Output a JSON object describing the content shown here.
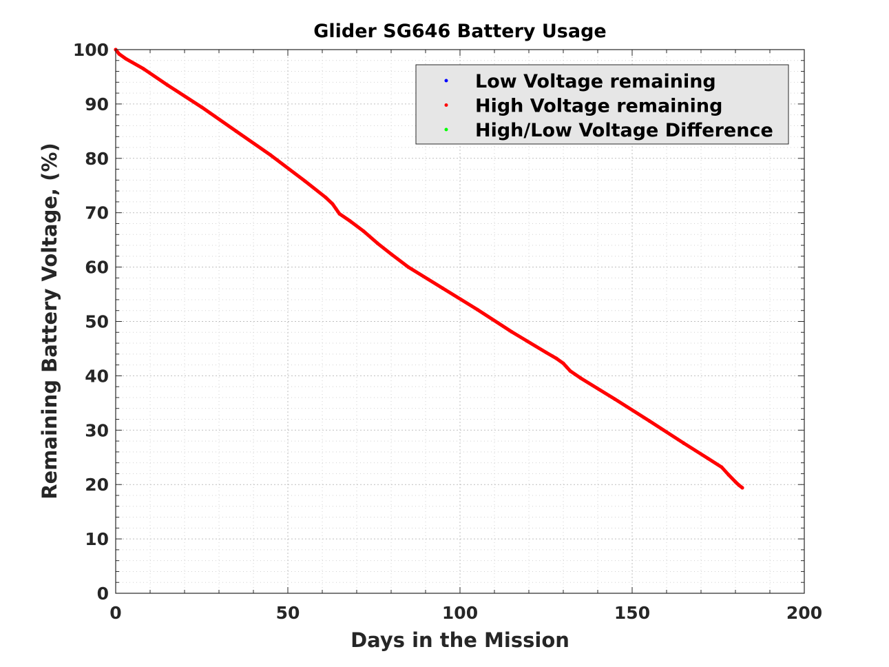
{
  "chart_data": {
    "type": "line",
    "title": "Glider SG646 Battery Usage",
    "xlabel": "Days in the Mission",
    "ylabel": "Remaining Battery Voltage, (%)",
    "xlim": [
      0,
      200
    ],
    "ylim": [
      0,
      100
    ],
    "xticks": [
      0,
      50,
      100,
      150,
      200
    ],
    "yticks": [
      0,
      10,
      20,
      30,
      40,
      50,
      60,
      70,
      80,
      90,
      100
    ],
    "grid": true,
    "minor_grid": true,
    "legend_position": "top-right",
    "series": [
      {
        "name": "Low Voltage remaining",
        "color": "#0000ff",
        "x": [],
        "y": []
      },
      {
        "name": "High Voltage remaining",
        "color": "#ff0000",
        "x": [
          0,
          1,
          3,
          8,
          15,
          25,
          35,
          45,
          55,
          61,
          63,
          64,
          65,
          68,
          72,
          76,
          80,
          85,
          95,
          105,
          115,
          125,
          128,
          130,
          131,
          132,
          135,
          145,
          155,
          165,
          172,
          176,
          178,
          180,
          181,
          182
        ],
        "y": [
          100,
          99.2,
          98.3,
          96.5,
          93.5,
          89.4,
          85.0,
          80.6,
          75.8,
          72.8,
          71.6,
          70.7,
          69.8,
          68.5,
          66.6,
          64.4,
          62.4,
          60.0,
          56.1,
          52.2,
          48.1,
          44.3,
          43.2,
          42.3,
          41.6,
          40.9,
          39.6,
          35.7,
          31.7,
          27.6,
          24.8,
          23.2,
          21.8,
          20.5,
          19.9,
          19.4
        ]
      },
      {
        "name": "High/Low Voltage Difference",
        "color": "#00ff00",
        "x": [],
        "y": []
      }
    ]
  }
}
